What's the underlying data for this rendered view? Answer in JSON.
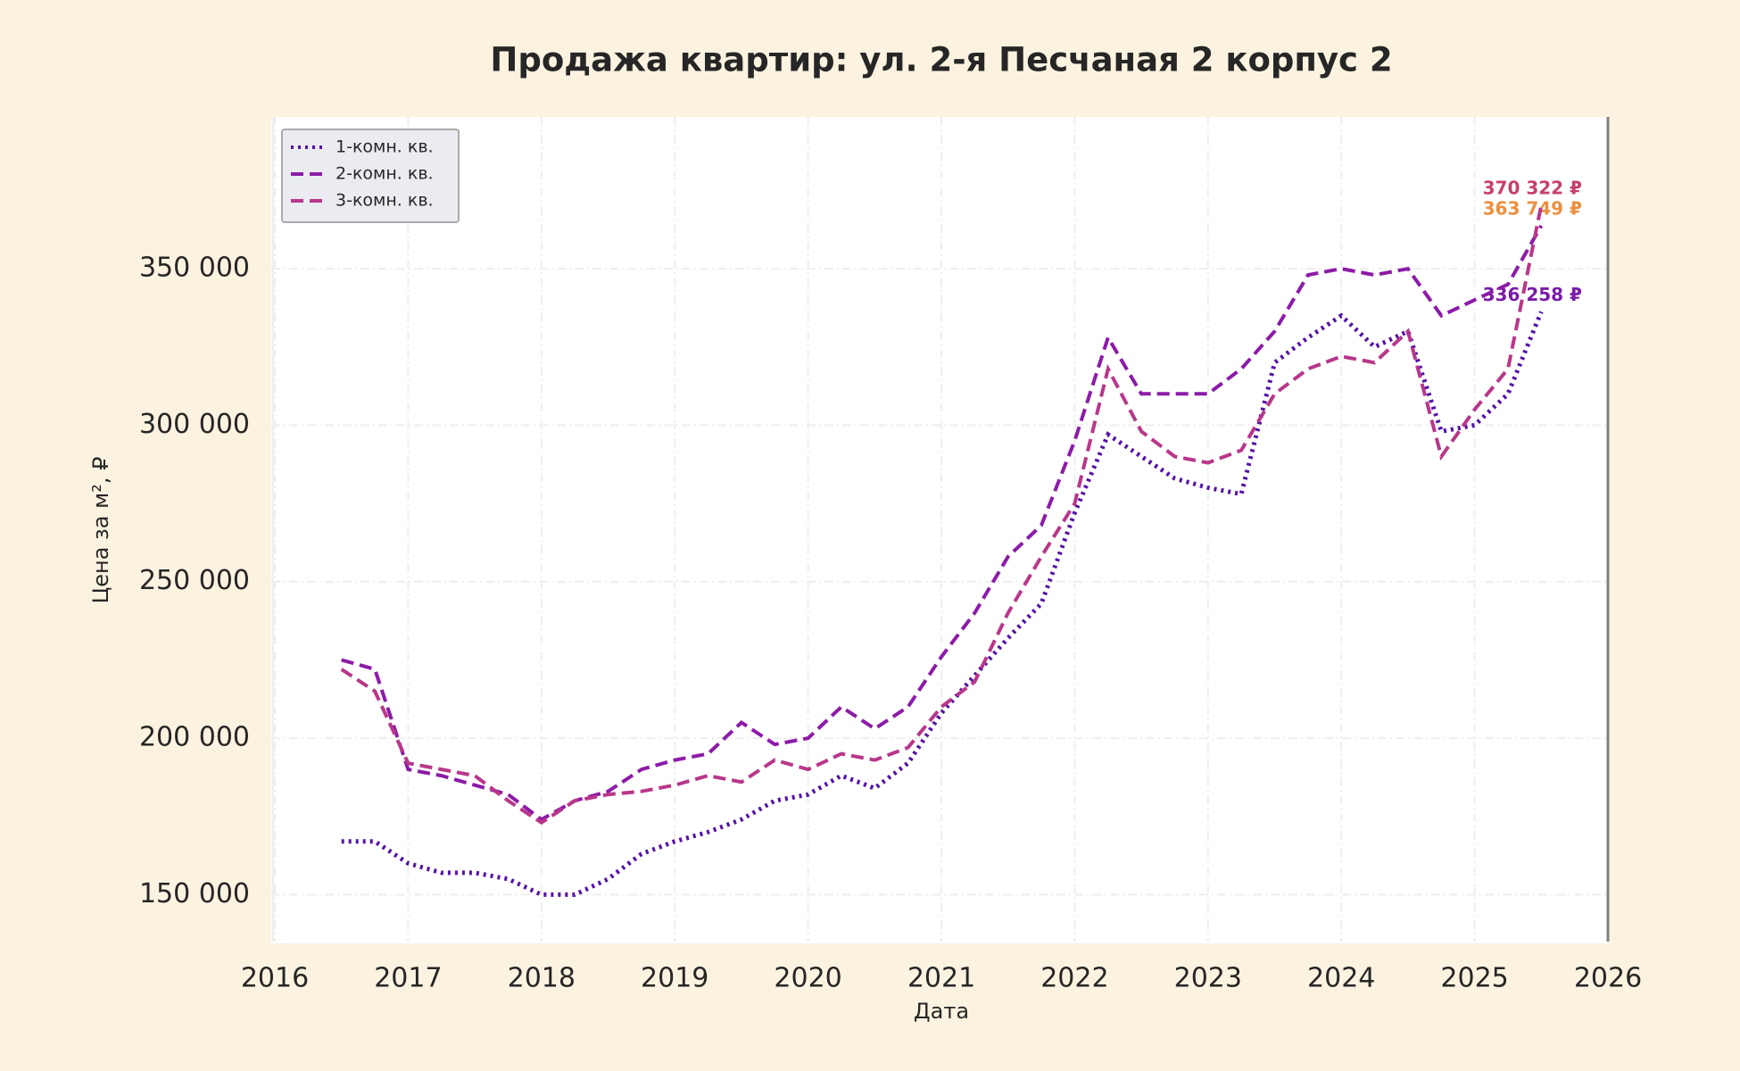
{
  "chart_data": {
    "type": "line",
    "title": "Продажа квартир: ул. 2-я Песчаная 2 корпус 2",
    "x_label": "Дата",
    "y_label": "Цена за м², ₽",
    "x": [
      2016.5,
      2016.75,
      2017.0,
      2017.25,
      2017.5,
      2017.75,
      2018.0,
      2018.25,
      2018.5,
      2018.75,
      2019.0,
      2019.25,
      2019.5,
      2019.75,
      2020.0,
      2020.25,
      2020.5,
      2020.75,
      2021.0,
      2021.25,
      2021.5,
      2021.75,
      2022.0,
      2022.25,
      2022.5,
      2022.75,
      2023.0,
      2023.25,
      2023.5,
      2023.75,
      2024.0,
      2024.25,
      2024.5,
      2024.75,
      2025.0,
      2025.25,
      2025.5
    ],
    "series": [
      {
        "name": "1-комн. кв.",
        "color": "#5512a6",
        "linestyle": "dotted",
        "label_color": "#7a1aa8",
        "values": [
          167000,
          167000,
          160000,
          157000,
          157000,
          155000,
          150000,
          150000,
          155000,
          163000,
          167000,
          170000,
          174000,
          180000,
          182000,
          188000,
          184000,
          192000,
          208000,
          220000,
          232000,
          243000,
          272000,
          297000,
          290000,
          283000,
          280000,
          278000,
          320000,
          328000,
          335000,
          325000,
          330000,
          298000,
          300000,
          310000,
          336258
        ],
        "value_labels": [
          null,
          null,
          null,
          null,
          null,
          null,
          null,
          null,
          null,
          null,
          null,
          null,
          null,
          null,
          null,
          null,
          null,
          null,
          null,
          null,
          null,
          null,
          null,
          null,
          null,
          null,
          null,
          null,
          null,
          null,
          null,
          null,
          null,
          null,
          null,
          null,
          "336 258 ₽"
        ]
      },
      {
        "name": "2-комн. кв.",
        "color": "#8c1ba8",
        "linestyle": "dashed",
        "label_color": "#ec9040",
        "values": [
          225000,
          222000,
          190000,
          188000,
          185000,
          182000,
          174000,
          180000,
          183000,
          190000,
          193000,
          195000,
          205000,
          198000,
          200000,
          210000,
          203000,
          210000,
          226000,
          240000,
          258000,
          268000,
          295000,
          328000,
          310000,
          310000,
          310000,
          318000,
          330000,
          348000,
          350000,
          348000,
          350000,
          335000,
          340000,
          345000,
          363749
        ],
        "value_labels": [
          null,
          null,
          null,
          null,
          null,
          null,
          null,
          null,
          null,
          null,
          null,
          null,
          null,
          null,
          null,
          null,
          null,
          null,
          null,
          null,
          null,
          null,
          null,
          null,
          null,
          null,
          null,
          null,
          null,
          null,
          null,
          null,
          null,
          null,
          null,
          null,
          "363 749 ₽"
        ]
      },
      {
        "name": "3-комн. кв.",
        "color": "#b8378a",
        "linestyle": "dashed",
        "label_color": "#c8406e",
        "values": [
          222000,
          215000,
          192000,
          190000,
          188000,
          180000,
          173000,
          180000,
          182000,
          183000,
          185000,
          188000,
          186000,
          193000,
          190000,
          195000,
          193000,
          197000,
          210000,
          218000,
          240000,
          258000,
          275000,
          318000,
          298000,
          290000,
          288000,
          292000,
          310000,
          318000,
          322000,
          320000,
          330000,
          290000,
          305000,
          318000,
          370322
        ],
        "value_labels": [
          null,
          null,
          null,
          null,
          null,
          null,
          null,
          null,
          null,
          null,
          null,
          null,
          null,
          null,
          null,
          null,
          null,
          null,
          null,
          null,
          null,
          null,
          null,
          null,
          null,
          null,
          null,
          null,
          null,
          null,
          null,
          null,
          null,
          null,
          null,
          null,
          "370 322 ₽"
        ]
      }
    ],
    "xlim": [
      2016,
      2026
    ],
    "xticks": [
      2016,
      2017,
      2018,
      2019,
      2020,
      2021,
      2022,
      2023,
      2024,
      2025,
      2026
    ],
    "ylim": [
      135000,
      398500
    ],
    "yticks": [
      {
        "value": 150000,
        "label": "150 000"
      },
      {
        "value": 200000,
        "label": "200 000"
      },
      {
        "value": 250000,
        "label": "250 000"
      },
      {
        "value": 300000,
        "label": "300 000"
      },
      {
        "value": 350000,
        "label": "350 000"
      }
    ],
    "grid": true,
    "legend": "upper left"
  }
}
